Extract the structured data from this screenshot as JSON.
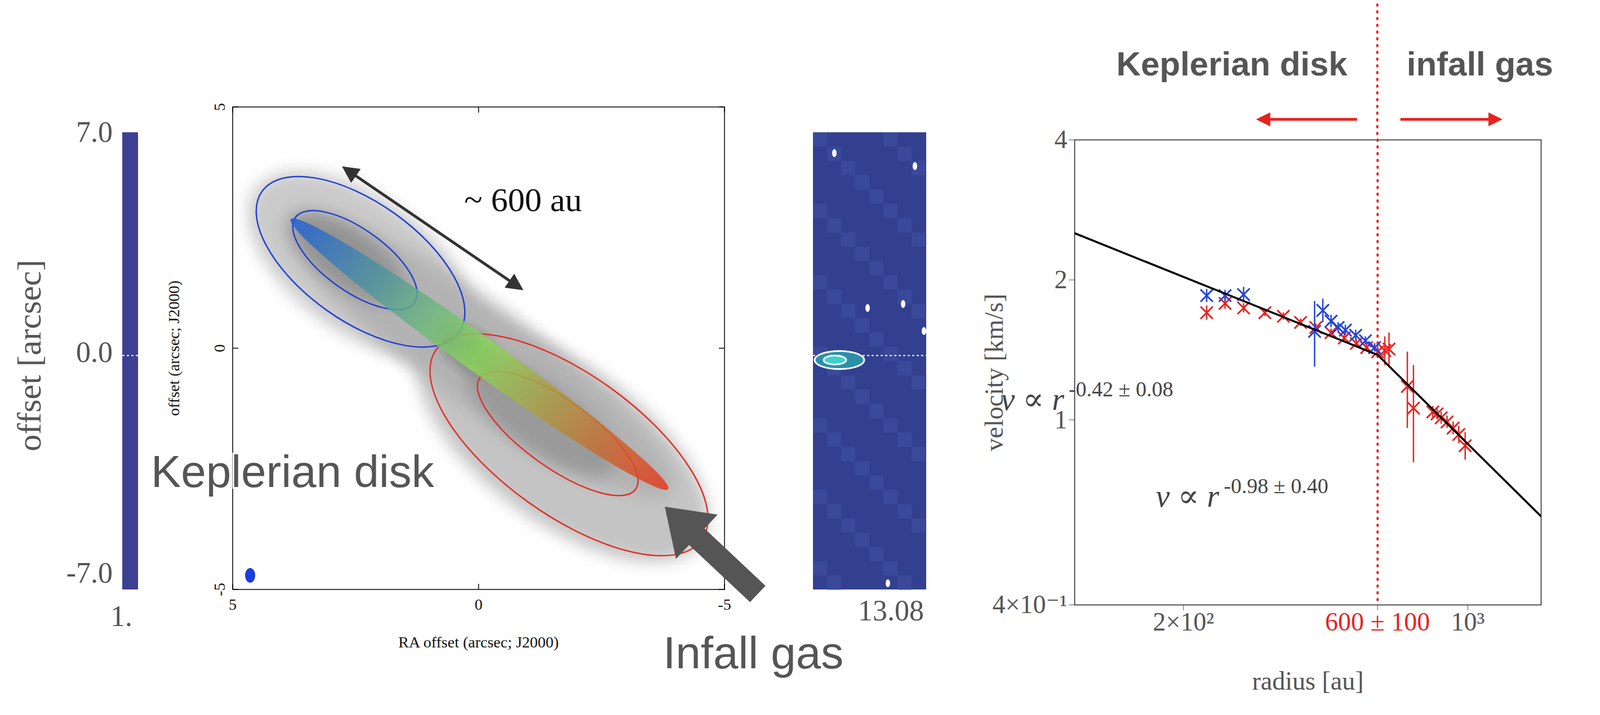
{
  "chart_data": {
    "type": "scatter",
    "log": true,
    "xlabel": "radius [au]",
    "ylabel": "velocity [km/s]",
    "xlim": [
      108,
      1514
    ],
    "ylim": [
      0.4,
      4
    ],
    "xticks": [
      {
        "value": 200,
        "label": "2×10²"
      },
      {
        "value": 600,
        "label": "600 ± 100"
      },
      {
        "value": 1000,
        "label": "10³"
      }
    ],
    "yticks": [
      {
        "value": 0.4,
        "label": "4×10⁻¹"
      },
      1,
      2,
      4
    ],
    "series": [
      {
        "color": "#e8231f",
        "marker": "x",
        "x": [
          228,
          253,
          281,
          317,
          352,
          388,
          423,
          461,
          497,
          532,
          564,
          600,
          625,
          640,
          710,
          735,
          820,
          840,
          860,
          889,
          920,
          950,
          985
        ],
        "values": [
          1.7,
          1.78,
          1.74,
          1.7,
          1.67,
          1.62,
          1.58,
          1.54,
          1.5,
          1.46,
          1.43,
          1.4,
          1.41,
          1.42,
          1.18,
          1.06,
          1.04,
          1.03,
          1.01,
          0.99,
          0.96,
          0.93,
          0.88
        ],
        "errors": [
          0.06,
          0.05,
          0.04,
          0.03,
          0.03,
          0.03,
          0.03,
          0.03,
          0.03,
          0.03,
          0.03,
          0.04,
          0.1,
          0.12,
          0.22,
          0.25,
          0.03,
          0.03,
          0.03,
          0.03,
          0.03,
          0.04,
          0.06
        ]
      },
      {
        "color": "#2244dd",
        "marker": "x",
        "x": [
          228,
          253,
          281,
          420,
          440,
          461,
          480,
          500,
          530,
          560,
          590
        ],
        "values": [
          1.85,
          1.85,
          1.86,
          1.55,
          1.72,
          1.63,
          1.58,
          1.56,
          1.52,
          1.48,
          1.43
        ],
        "errors": [
          0.06,
          0.05,
          0.07,
          0.25,
          0.1,
          0.05,
          0.04,
          0.04,
          0.04,
          0.03,
          0.03
        ]
      },
      {
        "type": "line",
        "color": "#000000",
        "line_style": "solid",
        "x": [
          108,
          600,
          1514
        ],
        "values": [
          2.52,
          1.38,
          0.62
        ]
      }
    ],
    "boundary": {
      "value": 600,
      "color": "#e8231f",
      "line_style": "dotted"
    },
    "regions": {
      "left": "Keplerian disk",
      "right": "infall gas"
    },
    "annotations": [
      {
        "text": "v ∝ r",
        "exponent": "-0.42 ± 0.08",
        "x": 116,
        "y": 1.05
      },
      {
        "text": "v ∝ r",
        "exponent": "-0.98 ± 0.40",
        "x": 279,
        "y": 0.65
      }
    ]
  },
  "image_panel": {
    "colorbar": {
      "ylim": [
        -7,
        7
      ],
      "yticks": [
        {
          "value": 7,
          "label": "7.0"
        },
        {
          "value": 0,
          "label": "0.0"
        },
        {
          "value": -7,
          "label": "-7.0"
        }
      ],
      "ylabel": "offset [arcsec]",
      "bottom_label": "1."
    },
    "map": {
      "xlim": [
        5,
        -5
      ],
      "ylim": [
        -5,
        5
      ],
      "xticks": [
        5,
        0,
        -5
      ],
      "yticks": [
        5,
        0,
        -5
      ],
      "xlabel": "RA offset (arcsec; J2000)",
      "ylabel": "offset (arcsec; J2000)"
    },
    "pv_strip": {
      "bottom_label": "13.08"
    },
    "annotations": {
      "size": "~ 600 au",
      "disk": "Keplerian disk",
      "infall": "Infall gas"
    }
  }
}
